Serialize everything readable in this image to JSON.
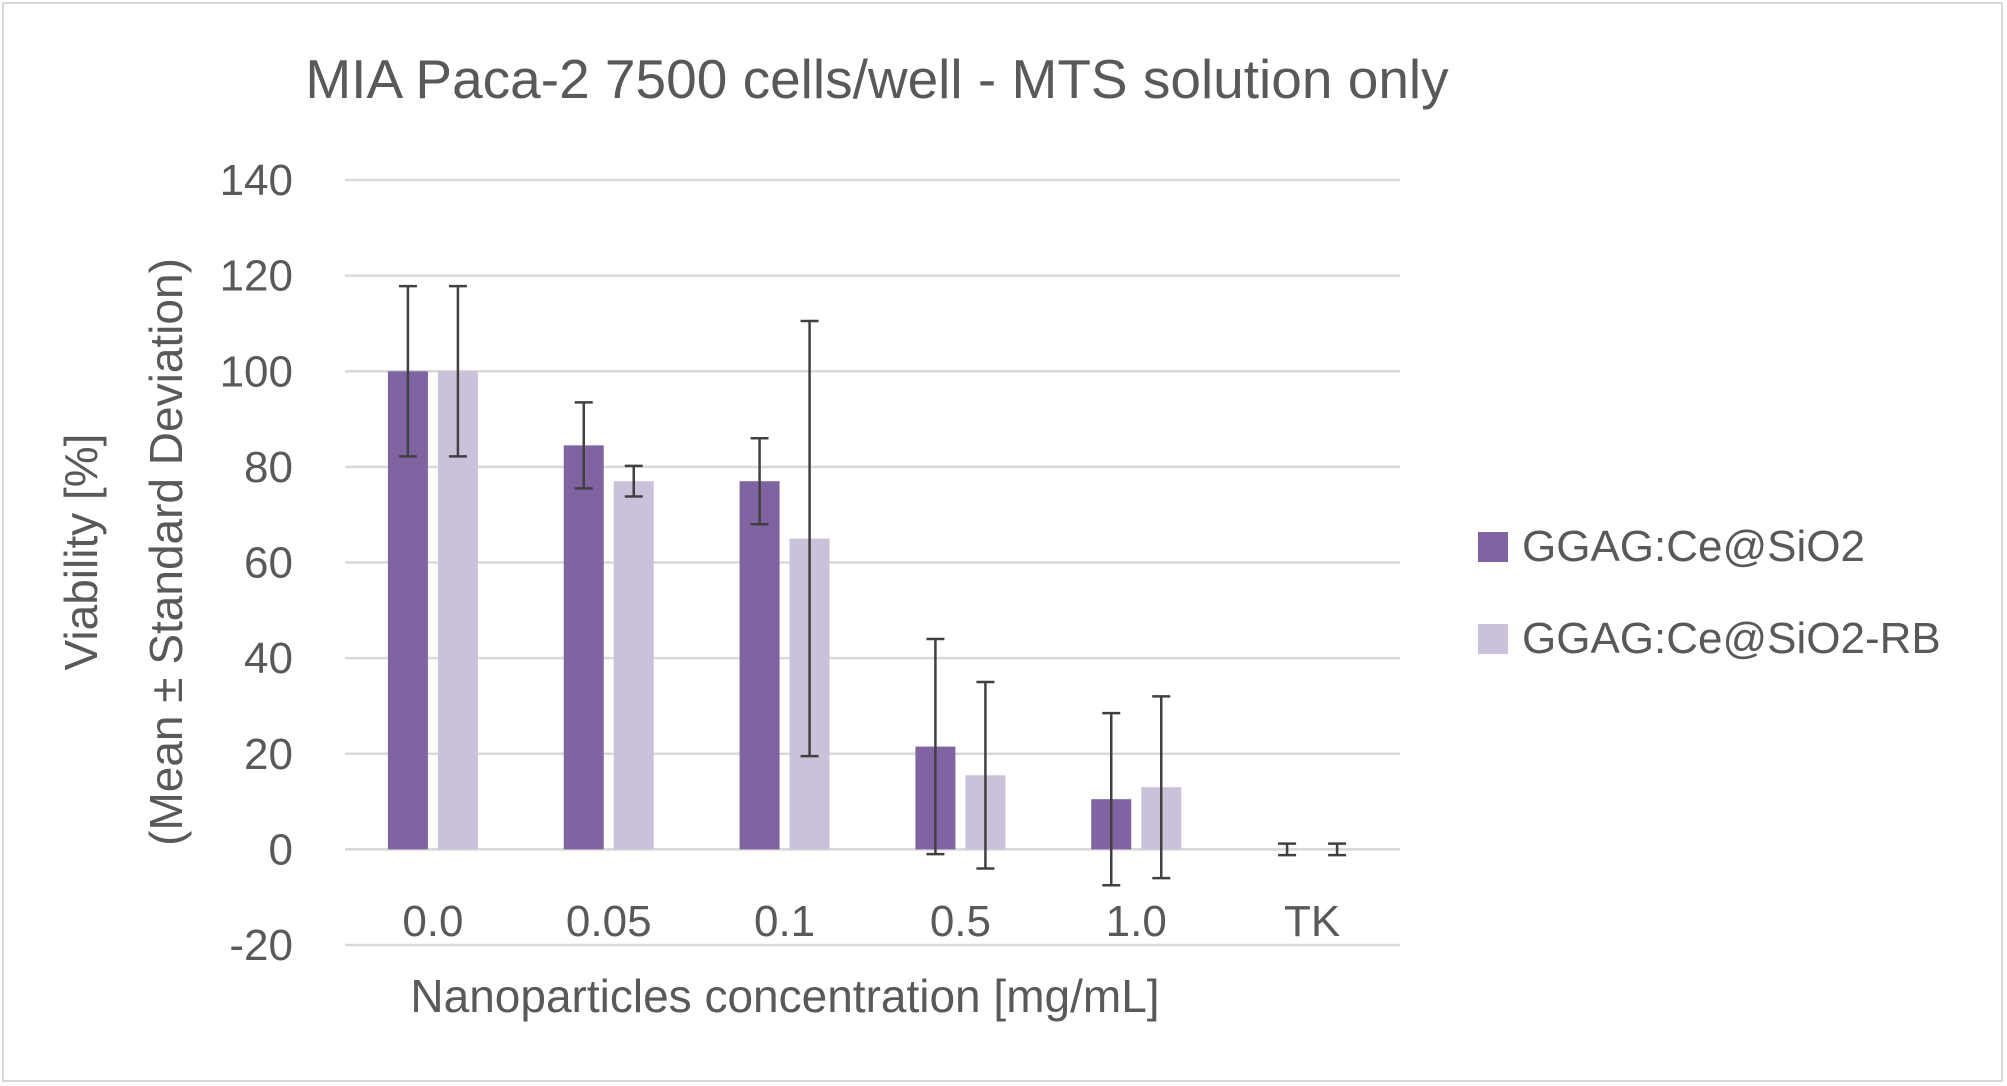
{
  "chart_data": {
    "type": "bar",
    "title": "MIA Paca-2 7500 cells/well - MTS solution only",
    "xlabel": "Nanoparticles concentration [mg/mL]",
    "ylabel_line1": "Viability [%]",
    "ylabel_line2": "(Mean ± Standard Deviation)",
    "categories": [
      "0.0",
      "0.05",
      "0.1",
      "0.5",
      "1.0",
      "TK"
    ],
    "ylim": [
      -20,
      140
    ],
    "yticks": [
      -20,
      0,
      20,
      40,
      60,
      80,
      100,
      120,
      140
    ],
    "grid": true,
    "legend_position": "right",
    "series": [
      {
        "name": "GGAG:Ce@SiO2",
        "color": "#8064a2",
        "values": [
          100,
          84.5,
          77,
          21.5,
          10.5,
          0
        ],
        "errors": [
          17.8,
          9,
          9,
          22.5,
          18,
          1.2
        ]
      },
      {
        "name": "GGAG:Ce@SiO2-RB",
        "color": "#ccc1da",
        "values": [
          100,
          77,
          65,
          15.5,
          13,
          0
        ],
        "errors": [
          17.8,
          3.2,
          45.5,
          19.5,
          19,
          1.2
        ]
      }
    ]
  }
}
